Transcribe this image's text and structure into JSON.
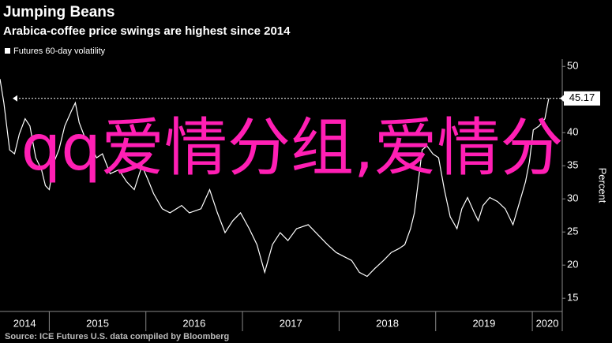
{
  "chart_data": {
    "type": "line",
    "title": "Jumping Beans",
    "subtitle": "Arabica-coffee price swings are highest since 2014",
    "y_label": "Percent",
    "source": "Source: ICE Futures U.S. data compiled by Bloomberg",
    "watermark": "qq爱情分组,爱情分",
    "reference_line": 45.17,
    "xlim": [
      2014.49,
      2020.31
    ],
    "xticks": [
      2014,
      2015,
      2016,
      2017,
      2018,
      2019,
      2020
    ],
    "ylim": [
      13,
      51.1
    ],
    "yticks": [
      15,
      20,
      25,
      30,
      35,
      40,
      45,
      50
    ],
    "series": [
      {
        "name": "Futures 60-day volatility",
        "color": "#ffffff",
        "x": [
          2014.49,
          2014.53,
          2014.59,
          2014.64,
          2014.69,
          2014.75,
          2014.8,
          2014.86,
          2014.92,
          2014.96,
          2015.0,
          2015.05,
          2015.1,
          2015.16,
          2015.23,
          2015.27,
          2015.31,
          2015.37,
          2015.43,
          2015.49,
          2015.55,
          2015.63,
          2015.72,
          2015.8,
          2015.88,
          2015.96,
          2016.03,
          2016.08,
          2016.17,
          2016.25,
          2016.37,
          2016.45,
          2016.57,
          2016.66,
          2016.74,
          2016.82,
          2016.9,
          2016.98,
          2017.07,
          2017.15,
          2017.23,
          2017.31,
          2017.39,
          2017.47,
          2017.56,
          2017.68,
          2017.8,
          2017.88,
          2017.97,
          2018.05,
          2018.13,
          2018.21,
          2018.29,
          2018.37,
          2018.46,
          2018.54,
          2018.62,
          2018.68,
          2018.74,
          2018.78,
          2018.82,
          2018.86,
          2018.91,
          2018.97,
          2019.03,
          2019.09,
          2019.15,
          2019.22,
          2019.27,
          2019.33,
          2019.4,
          2019.44,
          2019.49,
          2019.56,
          2019.64,
          2019.72,
          2019.8,
          2019.87,
          2019.93,
          2019.97,
          2020.01,
          2020.07,
          2020.13,
          2020.17
        ],
        "values": [
          48.1,
          44.5,
          37.4,
          36.8,
          39.8,
          42.1,
          41.0,
          36.2,
          34.4,
          32.0,
          31.4,
          35.6,
          37.4,
          41.0,
          43.3,
          44.5,
          41.5,
          39.2,
          38.0,
          36.2,
          36.8,
          33.8,
          34.4,
          32.6,
          31.4,
          35.0,
          32.6,
          30.8,
          28.5,
          27.9,
          29.0,
          27.9,
          28.5,
          31.4,
          27.9,
          24.9,
          26.7,
          27.9,
          25.5,
          23.1,
          18.9,
          23.1,
          24.9,
          23.7,
          25.5,
          26.1,
          24.3,
          23.1,
          21.9,
          21.3,
          20.7,
          18.9,
          18.3,
          19.5,
          20.7,
          21.9,
          22.5,
          23.1,
          25.5,
          27.9,
          32.6,
          37.4,
          38.0,
          36.8,
          36.2,
          31.4,
          27.3,
          25.5,
          28.5,
          30.2,
          27.9,
          26.7,
          29.0,
          30.2,
          29.6,
          28.5,
          26.1,
          29.6,
          32.6,
          35.6,
          40.4,
          41.0,
          42.1,
          45.17
        ]
      }
    ]
  }
}
